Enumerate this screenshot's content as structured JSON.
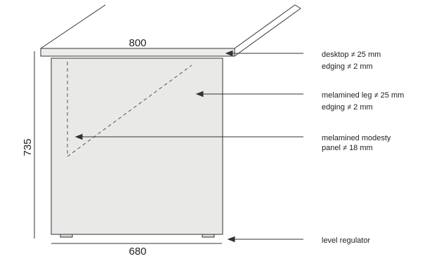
{
  "dimensions": {
    "top_width": "800",
    "bottom_width": "680",
    "height": "735"
  },
  "callouts": {
    "desktop": {
      "line1": "desktop ≠ 25 mm",
      "line2": "edging ≠ 2 mm"
    },
    "leg": {
      "line1": "melamined leg ≠ 25 mm",
      "line2": "edging ≠ 2 mm"
    },
    "modesty_panel": {
      "line1": "melamined modesty",
      "line2": "panel ≠ 18 mm"
    },
    "regulator": {
      "line1": "level regulator"
    }
  },
  "colors": {
    "panel_fill": "#e9eae8",
    "line": "#333333"
  }
}
